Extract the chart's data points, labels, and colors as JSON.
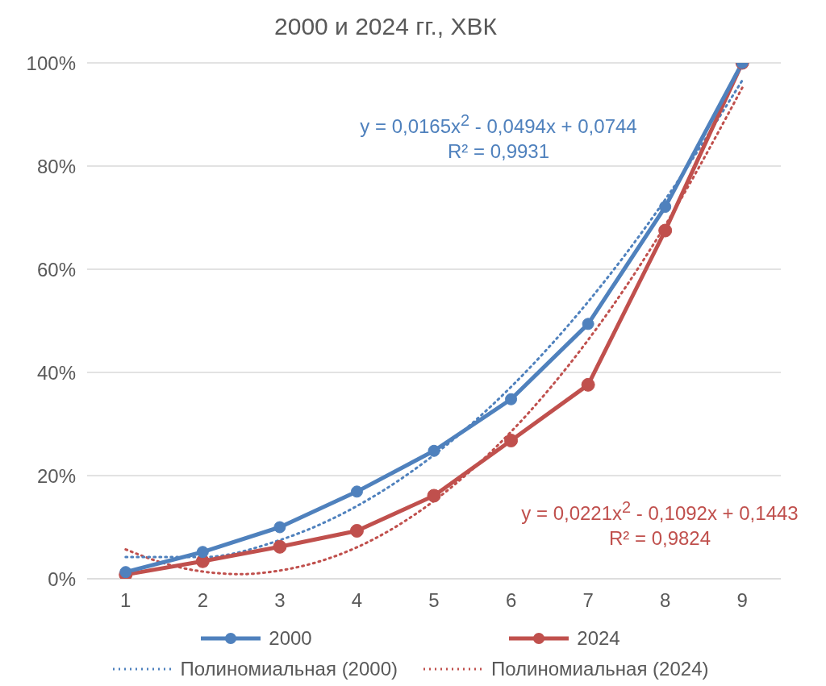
{
  "chart_data": {
    "type": "line",
    "title": "2000 и 2024 гг., ХВК",
    "x": [
      1,
      2,
      3,
      4,
      5,
      6,
      7,
      8,
      9
    ],
    "series": [
      {
        "name": "2000",
        "color": "#4f81bd",
        "values": [
          1.3,
          5.2,
          10,
          16.9,
          24.8,
          34.8,
          49.4,
          72.1,
          100
        ],
        "marker": "circle",
        "line_style": "solid"
      },
      {
        "name": "2024",
        "color": "#c0504d",
        "values": [
          0.8,
          3.4,
          6.2,
          9.3,
          16.1,
          26.8,
          37.6,
          67.5,
          100
        ],
        "marker": "circle",
        "line_style": "solid"
      },
      {
        "name": "Полиномиальная (2000)",
        "color": "#4f81bd",
        "x": [
          1,
          2,
          3,
          4,
          5,
          6,
          7,
          8,
          9
        ],
        "values": [
          4.2,
          4.2,
          7.5,
          14.1,
          24,
          37.2,
          53.7,
          73.5,
          96.6
        ],
        "marker": "none",
        "line_style": "dotted"
      },
      {
        "name": "Полиномиальная (2024)",
        "color": "#c0504d",
        "x": [
          1,
          1.5,
          2,
          2.5,
          3,
          3.5,
          4,
          5,
          6,
          7,
          8,
          9
        ],
        "values": [
          5.7,
          3,
          1.4,
          0.9,
          1.6,
          3.3,
          6.1,
          15.1,
          28.5,
          46.3,
          68.5,
          95.2
        ],
        "marker": "none",
        "line_style": "dotted"
      }
    ],
    "xlim": [
      0.5,
      9.5
    ],
    "xticks": [
      1,
      2,
      3,
      4,
      5,
      6,
      7,
      8,
      9
    ],
    "ylim": [
      0,
      100
    ],
    "yticks": [
      {
        "value": 0,
        "label": "0%"
      },
      {
        "value": 20,
        "label": "20%"
      },
      {
        "value": 40,
        "label": "40%"
      },
      {
        "value": 60,
        "label": "60%"
      },
      {
        "value": 80,
        "label": "80%"
      },
      {
        "value": 100,
        "label": "100%"
      }
    ],
    "grid": "y",
    "legend": "bottom",
    "annotations": [
      "y = 0,0165x$^{2}$ - 0,0494x + 0,0744",
      "R² = 0,9931",
      "y = 0,0221x$^{2}$ - 0,1092x + 0,1443",
      "R² = 0,9824"
    ]
  }
}
